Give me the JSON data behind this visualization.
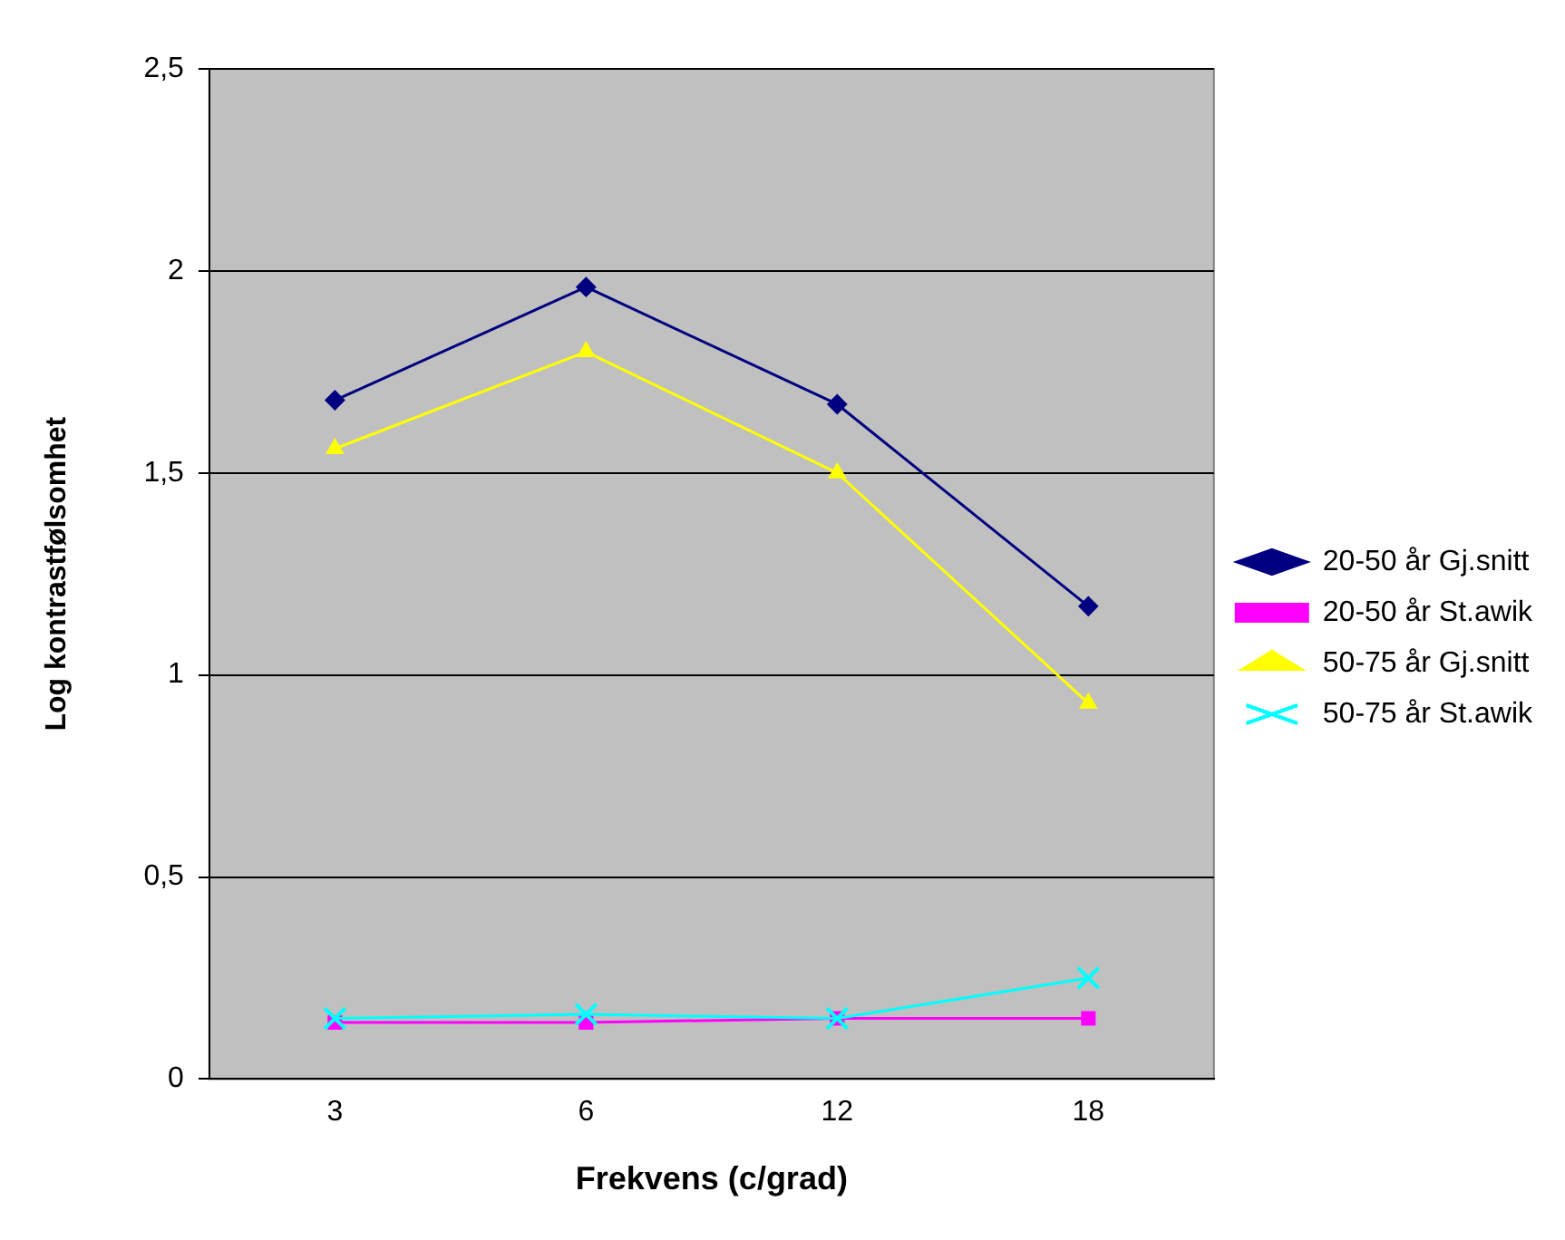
{
  "chart_data": {
    "type": "line",
    "xlabel": "Frekvens (c/grad)",
    "ylabel": "Log kontrastfølsomhet",
    "categories": [
      "3",
      "6",
      "12",
      "18"
    ],
    "series": [
      {
        "name": "20-50 år Gj.snitt",
        "color": "#000080",
        "marker": "diamond",
        "values": [
          1.68,
          1.96,
          1.67,
          1.17
        ]
      },
      {
        "name": "20-50 år St.awik",
        "color": "#ff00ff",
        "marker": "square",
        "values": [
          0.14,
          0.14,
          0.15,
          0.15
        ]
      },
      {
        "name": "50-75 år Gj.snitt",
        "color": "#ffff00",
        "marker": "triangle",
        "values": [
          1.56,
          1.8,
          1.5,
          0.93
        ]
      },
      {
        "name": "50-75 år St.awik",
        "color": "#00ffff",
        "marker": "cross",
        "values": [
          0.15,
          0.16,
          0.15,
          0.25
        ]
      }
    ],
    "ylim": [
      0,
      2.5
    ],
    "yticks": [
      0,
      {
        "value": 0.5,
        "label": "0,5"
      },
      1,
      {
        "value": 1.5,
        "label": "1,5"
      },
      2,
      {
        "value": 2.5,
        "label": "2,5"
      }
    ],
    "grid": "y",
    "legend": "right"
  }
}
